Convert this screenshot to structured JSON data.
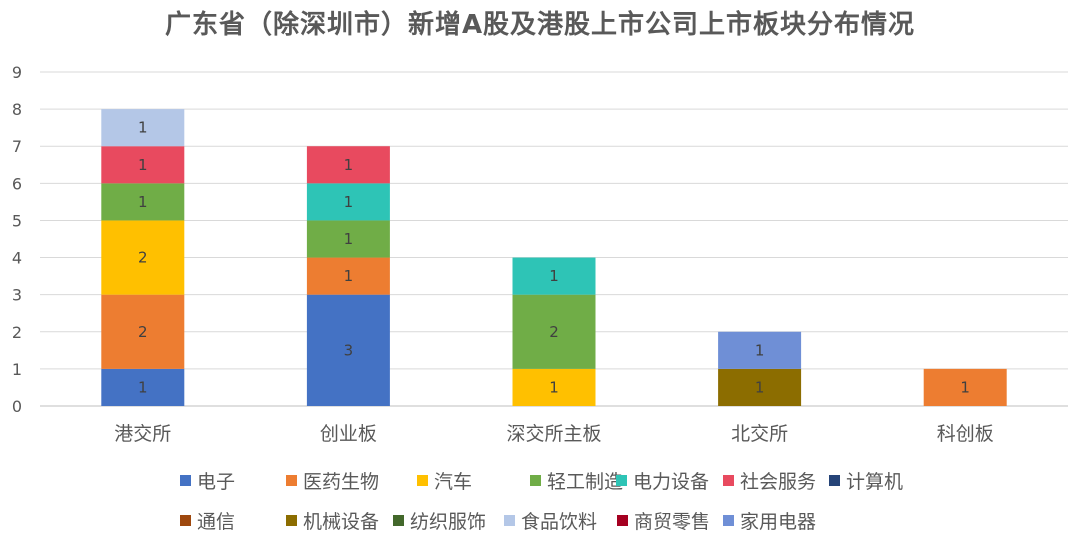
{
  "chart_data": {
    "type": "bar",
    "stacked": true,
    "title": "广东省（除深圳市）新增A股及港股上市公司上市板块分布情况",
    "categories": [
      "港交所",
      "创业板",
      "深交所主板",
      "北交所",
      "科创板"
    ],
    "ylim": [
      0,
      9
    ],
    "yticks": [
      0,
      1,
      2,
      3,
      4,
      5,
      6,
      7,
      8,
      9
    ],
    "grid": true,
    "legend_position": "bottom",
    "series": [
      {
        "name": "电子",
        "color": "#4472C4",
        "values": [
          1,
          3,
          0,
          0,
          0
        ]
      },
      {
        "name": "医药生物",
        "color": "#ED7D31",
        "values": [
          2,
          1,
          0,
          0,
          1
        ]
      },
      {
        "name": "汽车",
        "color": "#FFC000",
        "values": [
          2,
          0,
          1,
          0,
          0
        ]
      },
      {
        "name": "轻工制造",
        "color": "#70AD47",
        "values": [
          1,
          1,
          2,
          0,
          0
        ]
      },
      {
        "name": "电力设备",
        "color": "#2EC4B6",
        "values": [
          0,
          1,
          1,
          0,
          0
        ]
      },
      {
        "name": "社会服务",
        "color": "#E84A5F",
        "values": [
          1,
          1,
          0,
          0,
          0
        ]
      },
      {
        "name": "计算机",
        "color": "#264478",
        "values": [
          0,
          0,
          0,
          0,
          0
        ]
      },
      {
        "name": "通信",
        "color": "#9E480E",
        "values": [
          0,
          0,
          0,
          0,
          0
        ]
      },
      {
        "name": "机械设备",
        "color": "#8C6D00",
        "values": [
          0,
          0,
          0,
          1,
          0
        ]
      },
      {
        "name": "纺织服饰",
        "color": "#43682B",
        "values": [
          0,
          0,
          0,
          0,
          0
        ]
      },
      {
        "name": "食品饮料",
        "color": "#B4C7E7",
        "values": [
          1,
          0,
          0,
          0,
          0
        ]
      },
      {
        "name": "商贸零售",
        "color": "#A50021",
        "values": [
          0,
          0,
          0,
          0,
          0
        ]
      },
      {
        "name": "家用电器",
        "color": "#6F8FD6",
        "values": [
          0,
          0,
          0,
          1,
          0
        ]
      }
    ]
  }
}
